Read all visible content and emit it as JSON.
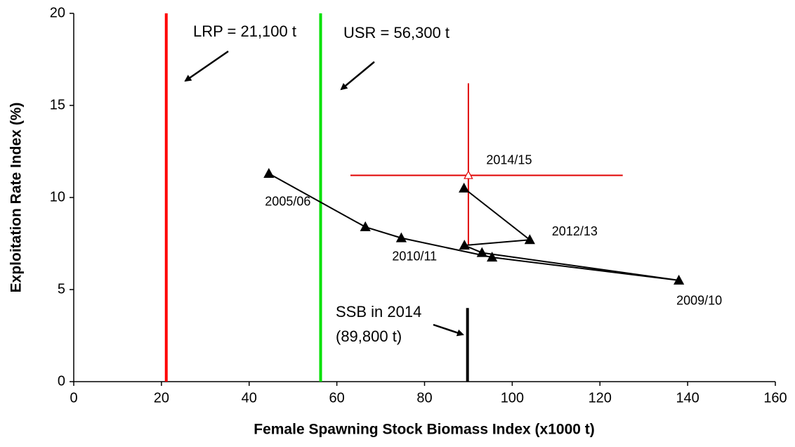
{
  "chart_data": {
    "type": "scatter",
    "x_label": "Female Spawning Stock Biomass Index (x1000 t)",
    "y_label": "Exploitation Rate Index (%)",
    "xlim": [
      0,
      160
    ],
    "xticks": [
      0,
      20,
      40,
      60,
      80,
      100,
      120,
      140,
      160
    ],
    "ylim": [
      0,
      20
    ],
    "yticks": [
      0,
      5,
      10,
      15,
      20
    ],
    "x": [
      44.5,
      66.5,
      74.7,
      95.4,
      138,
      93.1,
      89.1,
      104,
      89
    ],
    "y": [
      11.3,
      8.4,
      7.8,
      6.75,
      5.5,
      7.0,
      7.4,
      7.7,
      10.5
    ],
    "point_labels": [
      "2005/06",
      null,
      null,
      null,
      "2009/10",
      "2010/11",
      null,
      "2012/13",
      null
    ],
    "color": "#000000",
    "current": {
      "x": 90,
      "y": 11.2,
      "label": "2014/15",
      "color": "#e00000",
      "x_range": [
        63.1,
        125.2
      ],
      "y_range": [
        7.4,
        16.2
      ]
    },
    "reference_lines": [
      {
        "x": 21.1,
        "color": "#ff0000",
        "label": "LRP = 21,100 t"
      },
      {
        "x": 56.3,
        "color": "#00e000",
        "label": "USR = 56,300 t"
      }
    ],
    "ssb": {
      "x": 89.8,
      "y": 4,
      "labels": [
        "SSB in 2014",
        "(89,800 t)"
      ]
    }
  }
}
